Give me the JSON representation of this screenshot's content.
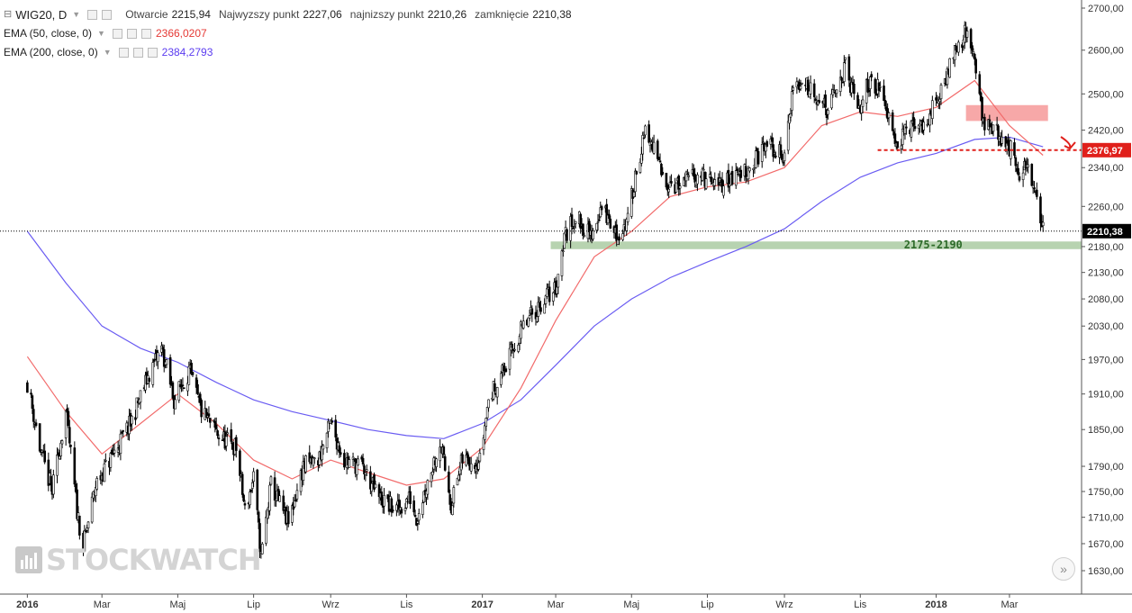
{
  "legend": {
    "symbol": "WIG20, D",
    "open_label": "Otwarcie",
    "open": "2215,94",
    "high_label": "Najwyzszy punkt",
    "high": "2227,06",
    "low_label": "najnizszy punkt",
    "low": "2210,26",
    "close_label": "zamknięcie",
    "close": "2210,38",
    "ema50_label": "EMA (50, close, 0)",
    "ema50_value": "2366,0207",
    "ema200_label": "EMA (200, close, 0)",
    "ema200_value": "2384,2793"
  },
  "watermark": "STOCKWATCH",
  "scroll_button": "»",
  "colors": {
    "ema50": "#f26b6b",
    "ema200": "#6a5cf2",
    "candles": "#000000",
    "resistance_zone": "#f7a8a8",
    "support_zone": "#b7d3b0",
    "breakdown_line": "#e0201b",
    "price_badge": "#000000"
  },
  "chart_data": {
    "type": "candlestick",
    "symbol": "WIG20",
    "interval": "D",
    "x_tick_labels": [
      "2016",
      "Mar",
      "Maj",
      "Lip",
      "Wrz",
      "Lis",
      "2017",
      "Mar",
      "Maj",
      "Lip",
      "Wrz",
      "Lis",
      "2018",
      "Mar"
    ],
    "y_tick_labels": [
      "2700,00",
      "2600,00",
      "2500,00",
      "2420,00",
      "2340,00",
      "2260,00",
      "2180,00",
      "2130,00",
      "2080,00",
      "2030,00",
      "1970,00",
      "1910,00",
      "1850,00",
      "1790,00",
      "1750,00",
      "1710,00",
      "1670,00",
      "1630,00"
    ],
    "y_ticks": [
      2700,
      2600,
      2500,
      2420,
      2340,
      2260,
      2180,
      2130,
      2080,
      2030,
      1970,
      1910,
      1850,
      1790,
      1750,
      1710,
      1670,
      1630
    ],
    "y_scale": "log",
    "ylim": [
      1600,
      2720
    ],
    "price_path": [
      [
        "2016-01-01",
        1930
      ],
      [
        "2016-01-12",
        1810
      ],
      [
        "2016-01-21",
        1750
      ],
      [
        "2016-02-01",
        1880
      ],
      [
        "2016-02-10",
        1720
      ],
      [
        "2016-02-15",
        1665
      ],
      [
        "2016-02-25",
        1760
      ],
      [
        "2016-03-10",
        1810
      ],
      [
        "2016-03-24",
        1860
      ],
      [
        "2016-04-07",
        1940
      ],
      [
        "2016-04-18",
        1990
      ],
      [
        "2016-04-28",
        1900
      ],
      [
        "2016-05-10",
        1950
      ],
      [
        "2016-05-20",
        1880
      ],
      [
        "2016-06-03",
        1840
      ],
      [
        "2016-06-17",
        1820
      ],
      [
        "2016-06-24",
        1720
      ],
      [
        "2016-07-01",
        1770
      ],
      [
        "2016-07-07",
        1650
      ],
      [
        "2016-07-15",
        1760
      ],
      [
        "2016-07-29",
        1700
      ],
      [
        "2016-08-10",
        1790
      ],
      [
        "2016-08-22",
        1800
      ],
      [
        "2016-09-01",
        1860
      ],
      [
        "2016-09-12",
        1800
      ],
      [
        "2016-09-26",
        1790
      ],
      [
        "2016-10-10",
        1740
      ],
      [
        "2016-10-24",
        1720
      ],
      [
        "2016-11-04",
        1740
      ],
      [
        "2016-11-09",
        1710
      ],
      [
        "2016-11-17",
        1760
      ],
      [
        "2016-11-28",
        1830
      ],
      [
        "2016-12-07",
        1730
      ],
      [
        "2016-12-16",
        1800
      ],
      [
        "2016-12-30",
        1800
      ],
      [
        "2017-01-06",
        1900
      ],
      [
        "2017-01-20",
        1960
      ],
      [
        "2017-02-01",
        2020
      ],
      [
        "2017-02-10",
        2050
      ],
      [
        "2017-02-20",
        2080
      ],
      [
        "2017-03-01",
        2100
      ],
      [
        "2017-03-08",
        2200
      ],
      [
        "2017-03-17",
        2240
      ],
      [
        "2017-03-29",
        2200
      ],
      [
        "2017-04-07",
        2260
      ],
      [
        "2017-04-19",
        2200
      ],
      [
        "2017-04-28",
        2230
      ],
      [
        "2017-05-05",
        2340
      ],
      [
        "2017-05-12",
        2410
      ],
      [
        "2017-05-19",
        2380
      ],
      [
        "2017-05-26",
        2320
      ],
      [
        "2017-06-09",
        2300
      ],
      [
        "2017-06-23",
        2330
      ],
      [
        "2017-07-07",
        2300
      ],
      [
        "2017-07-21",
        2320
      ],
      [
        "2017-08-04",
        2340
      ],
      [
        "2017-08-18",
        2390
      ],
      [
        "2017-09-01",
        2360
      ],
      [
        "2017-09-08",
        2520
      ],
      [
        "2017-09-22",
        2520
      ],
      [
        "2017-10-06",
        2460
      ],
      [
        "2017-10-20",
        2560
      ],
      [
        "2017-10-30",
        2460
      ],
      [
        "2017-11-10",
        2540
      ],
      [
        "2017-11-24",
        2460
      ],
      [
        "2017-12-01",
        2390
      ],
      [
        "2017-12-08",
        2420
      ],
      [
        "2017-12-22",
        2430
      ],
      [
        "2018-01-05",
        2500
      ],
      [
        "2018-01-15",
        2600
      ],
      [
        "2018-01-25",
        2640
      ],
      [
        "2018-02-02",
        2570
      ],
      [
        "2018-02-08",
        2430
      ],
      [
        "2018-02-16",
        2430
      ],
      [
        "2018-02-22",
        2400
      ],
      [
        "2018-03-02",
        2380
      ],
      [
        "2018-03-09",
        2310
      ],
      [
        "2018-03-16",
        2350
      ],
      [
        "2018-03-23",
        2270
      ],
      [
        "2018-03-28",
        2215
      ]
    ],
    "series": [
      {
        "name": "EMA (50, close, 0)",
        "color": "#f26b6b",
        "values": [
          [
            "2016-01-01",
            1975
          ],
          [
            "2016-02-01",
            1880
          ],
          [
            "2016-03-01",
            1810
          ],
          [
            "2016-04-01",
            1860
          ],
          [
            "2016-05-01",
            1910
          ],
          [
            "2016-06-01",
            1860
          ],
          [
            "2016-07-01",
            1800
          ],
          [
            "2016-08-01",
            1770
          ],
          [
            "2016-09-01",
            1800
          ],
          [
            "2016-10-01",
            1780
          ],
          [
            "2016-11-01",
            1760
          ],
          [
            "2016-12-01",
            1770
          ],
          [
            "2017-01-01",
            1820
          ],
          [
            "2017-02-01",
            1920
          ],
          [
            "2017-03-01",
            2040
          ],
          [
            "2017-04-01",
            2160
          ],
          [
            "2017-05-01",
            2210
          ],
          [
            "2017-06-01",
            2280
          ],
          [
            "2017-07-01",
            2300
          ],
          [
            "2017-08-01",
            2310
          ],
          [
            "2017-09-01",
            2340
          ],
          [
            "2017-10-01",
            2430
          ],
          [
            "2017-11-01",
            2460
          ],
          [
            "2017-12-01",
            2450
          ],
          [
            "2018-01-01",
            2470
          ],
          [
            "2018-02-01",
            2530
          ],
          [
            "2018-03-01",
            2430
          ],
          [
            "2018-03-28",
            2366
          ]
        ]
      },
      {
        "name": "EMA (200, close, 0)",
        "color": "#6a5cf2",
        "values": [
          [
            "2016-01-01",
            2210
          ],
          [
            "2016-02-01",
            2110
          ],
          [
            "2016-03-01",
            2030
          ],
          [
            "2016-04-01",
            1990
          ],
          [
            "2016-05-01",
            1965
          ],
          [
            "2016-06-01",
            1930
          ],
          [
            "2016-07-01",
            1900
          ],
          [
            "2016-08-01",
            1880
          ],
          [
            "2016-09-01",
            1865
          ],
          [
            "2016-10-01",
            1850
          ],
          [
            "2016-11-01",
            1840
          ],
          [
            "2016-12-01",
            1835
          ],
          [
            "2017-01-01",
            1860
          ],
          [
            "2017-02-01",
            1900
          ],
          [
            "2017-03-01",
            1960
          ],
          [
            "2017-04-01",
            2030
          ],
          [
            "2017-05-01",
            2080
          ],
          [
            "2017-06-01",
            2120
          ],
          [
            "2017-07-01",
            2150
          ],
          [
            "2017-08-01",
            2180
          ],
          [
            "2017-09-01",
            2215
          ],
          [
            "2017-10-01",
            2270
          ],
          [
            "2017-11-01",
            2320
          ],
          [
            "2017-12-01",
            2350
          ],
          [
            "2018-01-01",
            2370
          ],
          [
            "2018-02-01",
            2400
          ],
          [
            "2018-03-01",
            2405
          ],
          [
            "2018-03-28",
            2384
          ]
        ]
      }
    ],
    "annotations": {
      "support_zone": {
        "low": 2175,
        "high": 2190,
        "label": "2175-2190",
        "from": "2017-02-25",
        "to": "2018-04-25"
      },
      "resistance_zone": {
        "low": 2440,
        "high": 2475,
        "from": "2018-01-25",
        "to": "2018-04-01"
      },
      "breakdown_level": {
        "value": 2376.97,
        "label": "2376,97",
        "from": "2017-11-15",
        "to": "2018-04-20"
      },
      "last_price": {
        "value": 2210.38,
        "label": "2210,38"
      }
    },
    "x_start": "2015-12-10",
    "x_end": "2018-04-28",
    "grid": false
  }
}
